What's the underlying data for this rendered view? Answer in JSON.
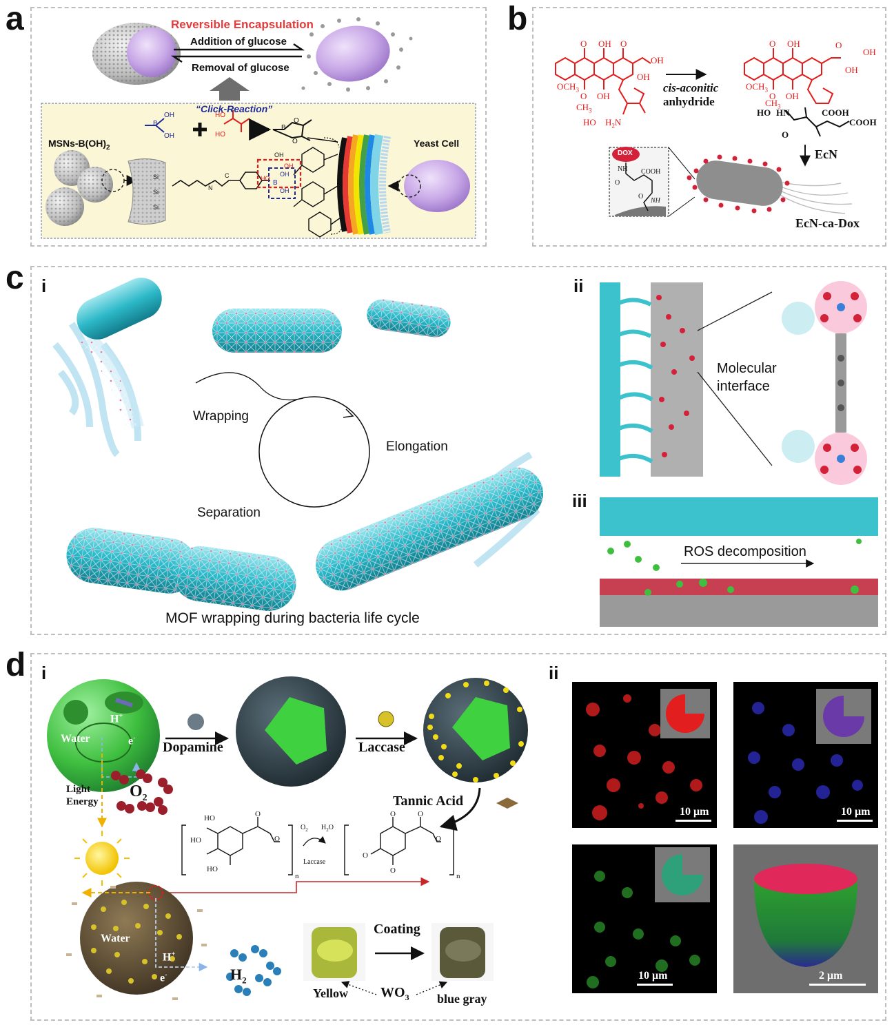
{
  "panel_labels": {
    "a": "a",
    "b": "b",
    "c": "c",
    "d": "d"
  },
  "sub_labels": {
    "c_i": "i",
    "c_ii": "ii",
    "c_iii": "iii",
    "d_i": "i",
    "d_ii": "ii"
  },
  "panel_a": {
    "title": "Reversible Encapsulation",
    "addition": "Addition of glucose",
    "removal": "Removal of glucose",
    "click": "“Click-Reaction”",
    "msn": "MSNs-B(OH)",
    "msn_sub": "2",
    "yeast": "Yeast Cell",
    "oh": "OH",
    "ho": "HO",
    "b": "B",
    "si": "Si",
    "n": "N",
    "c": "C",
    "h": "H",
    "o": "O"
  },
  "panel_b": {
    "reagent_line1": "cis-aconitic",
    "reagent_line2": "anhydride",
    "ecn": "EcN",
    "product": "EcN-ca-Dox",
    "dox": "DOX",
    "o": "O",
    "oh": "OH",
    "och3": "OCH",
    "och3_sub": "3",
    "ho": "HO",
    "ch3": "CH",
    "ch3_sub": "3",
    "h2n": "H",
    "h2n_sub": "2",
    "h2n_n": "N",
    "hn": "HN",
    "cooh": "COOH",
    "nh": "NH"
  },
  "panel_c": {
    "wrapping": "Wrapping",
    "elongation": "Elongation",
    "separation": "Separation",
    "caption": "MOF wrapping during bacteria life cycle",
    "molecular_interface_1": "Molecular",
    "molecular_interface_2": "interface",
    "ros": "ROS decomposition"
  },
  "panel_d": {
    "dopamine": "Dopamine",
    "laccase": "Laccase",
    "water": "Water",
    "h_plus": "H",
    "e_minus": "e",
    "plus": "+",
    "minus": "-",
    "light_1": "Light",
    "light_2": "Energy",
    "o2": "O",
    "o2_sub": "2",
    "tannic": "Tannic Acid",
    "ho": "HO",
    "o": "O",
    "n": "n",
    "o2_small": "O",
    "h2o_small": "H",
    "h2o_2": "2",
    "h2o_o": "O",
    "laccase_small": "Laccase",
    "h2": "H",
    "h2_sub": "2",
    "coating": "Coating",
    "yellow": "Yellow",
    "wo3": "WO",
    "wo3_sub": "3",
    "blue_gray": "blue gray",
    "scale_10": "10 μm",
    "scale_2": "2 μm"
  },
  "colors": {
    "red": "#e23c3c",
    "blue": "#2a2aa0",
    "cyan": "#2cb8c8",
    "green": "#3fbf3f",
    "purple": "#c8a8e8",
    "molecule_red": "#d4213a"
  }
}
